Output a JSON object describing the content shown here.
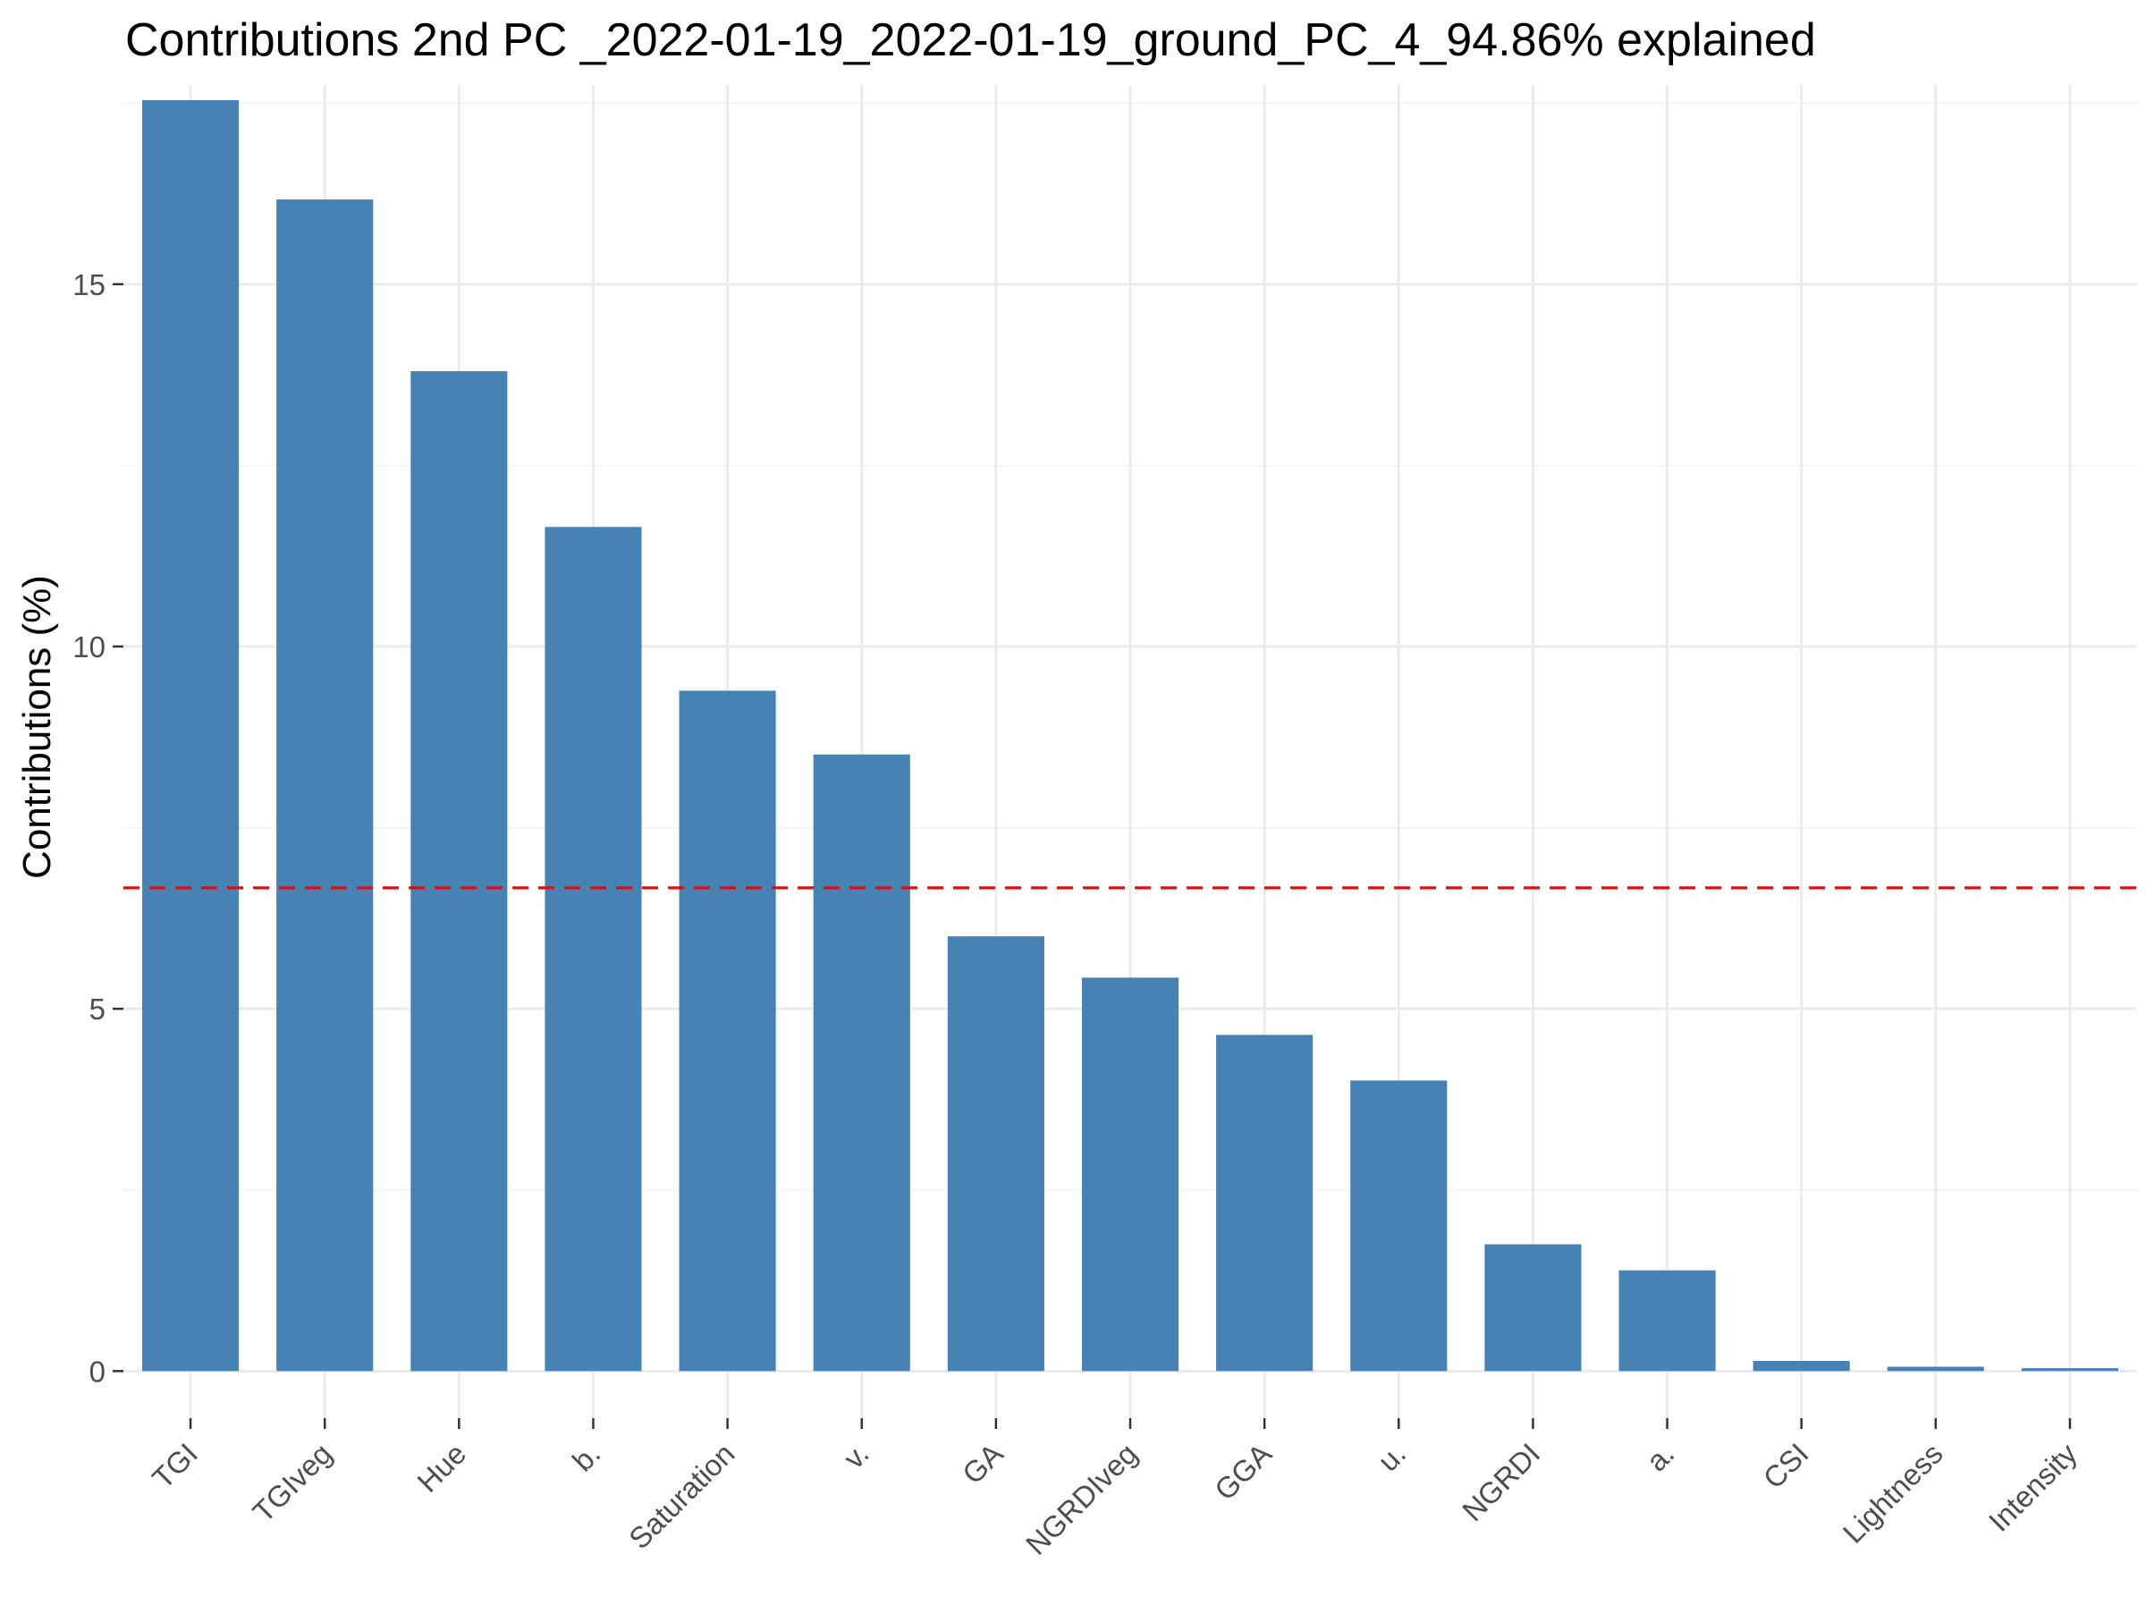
{
  "chart_data": {
    "type": "bar",
    "title": "Contributions 2nd PC _2022-01-19_2022-01-19_ground_PC_4_94.86% explained",
    "xlabel": "",
    "ylabel": "Contributions (%)",
    "categories": [
      "TGI",
      "TGIveg",
      "Hue",
      "b.",
      "Saturation",
      "v.",
      "GA",
      "NGRDIveg",
      "GGA",
      "u.",
      "NGRDI",
      "a.",
      "CSI",
      "Lightness",
      "Intensity"
    ],
    "values": [
      17.54,
      16.17,
      13.8,
      11.65,
      9.39,
      8.51,
      6.0,
      5.43,
      4.64,
      4.01,
      1.75,
      1.39,
      0.14,
      0.06,
      0.04
    ],
    "ylim": [
      -0.65,
      17.75
    ],
    "yticks": [
      0,
      5,
      10,
      15
    ],
    "reference_line": {
      "value": 6.67,
      "style": "dashed",
      "color": "#ff0000"
    },
    "bar_color": "#4682b4",
    "grid": true,
    "legend": "none"
  }
}
